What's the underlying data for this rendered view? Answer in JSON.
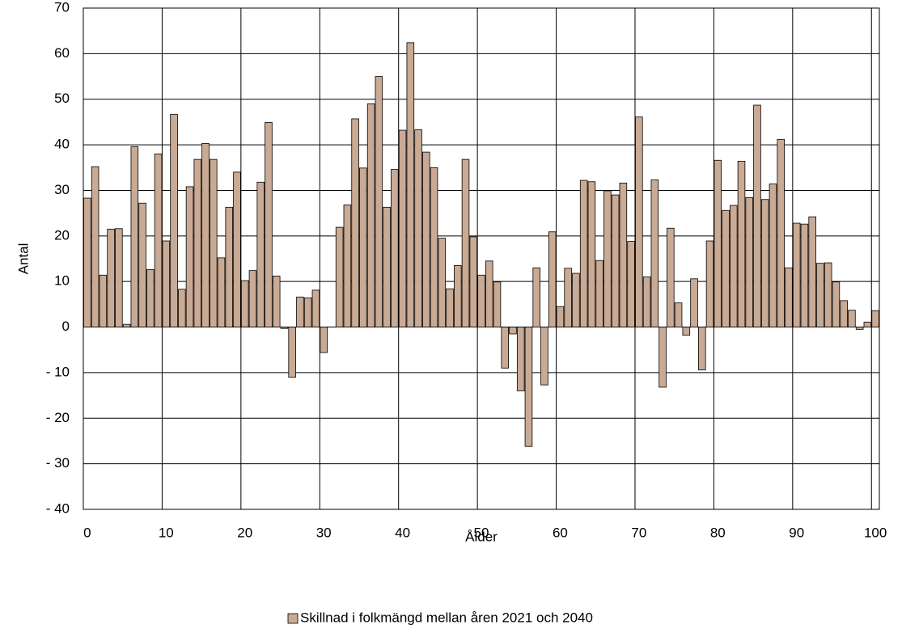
{
  "chart_data": {
    "type": "bar",
    "x_label": "Ålder",
    "y_label": "Antal",
    "categories": [
      "0",
      null,
      null,
      null,
      null,
      null,
      null,
      null,
      null,
      null,
      "10",
      null,
      null,
      null,
      null,
      null,
      null,
      null,
      null,
      null,
      "20",
      null,
      null,
      null,
      null,
      null,
      null,
      null,
      null,
      null,
      "30",
      null,
      null,
      null,
      null,
      null,
      null,
      null,
      null,
      null,
      "40",
      null,
      null,
      null,
      null,
      null,
      null,
      null,
      null,
      null,
      "50",
      null,
      null,
      null,
      null,
      null,
      null,
      null,
      null,
      null,
      "60",
      null,
      null,
      null,
      null,
      null,
      null,
      null,
      null,
      null,
      "70",
      null,
      null,
      null,
      null,
      null,
      null,
      null,
      null,
      null,
      "80",
      null,
      null,
      null,
      null,
      null,
      null,
      null,
      null,
      null,
      "90",
      null,
      null,
      null,
      null,
      null,
      null,
      null,
      null,
      null,
      "100"
    ],
    "series": [
      {
        "name": "Skillnad i folkmängd mellan åren 2021 och 2040",
        "color": "#c9aa94",
        "values": [
          28.3,
          35.2,
          11.4,
          21.5,
          21.6,
          0.6,
          39.6,
          27.2,
          12.6,
          38.0,
          18.9,
          46.7,
          8.3,
          30.8,
          36.8,
          40.3,
          36.8,
          15.2,
          26.3,
          34.0,
          10.2,
          12.4,
          31.8,
          44.9,
          11.2,
          -0.3,
          -11.0,
          6.6,
          6.4,
          8.1,
          -5.6,
          0,
          21.9,
          26.8,
          45.7,
          34.9,
          49.0,
          55.0,
          26.3,
          34.6,
          43.2,
          62.4,
          43.3,
          38.4,
          35.0,
          19.5,
          8.4,
          13.5,
          36.8,
          19.8,
          11.4,
          14.5,
          9.9,
          -9.0,
          -1.5,
          -14.0,
          -26.2,
          13.0,
          -12.7,
          20.9,
          4.5,
          12.9,
          11.8,
          32.2,
          31.9,
          14.6,
          29.9,
          29.0,
          31.6,
          18.8,
          46.1,
          11.0,
          32.3,
          -13.2,
          21.7,
          5.3,
          -1.8,
          10.6,
          -9.4,
          18.9,
          36.6,
          25.6,
          26.7,
          36.4,
          28.4,
          48.7,
          28.0,
          31.4,
          41.2,
          13.0,
          22.8,
          22.6,
          24.2,
          14.0,
          14.1,
          9.9,
          5.8,
          3.7,
          -0.5,
          1.1,
          3.6
        ]
      }
    ],
    "ylim": [
      -40,
      70
    ],
    "yticks": [
      {
        "value": -40,
        "label": "- 40"
      },
      {
        "value": -30,
        "label": "- 30"
      },
      {
        "value": -20,
        "label": "- 20"
      },
      {
        "value": -10,
        "label": "- 10"
      },
      0,
      10,
      20,
      30,
      40,
      50,
      60,
      70
    ],
    "grid": true,
    "legend": "bottom"
  }
}
